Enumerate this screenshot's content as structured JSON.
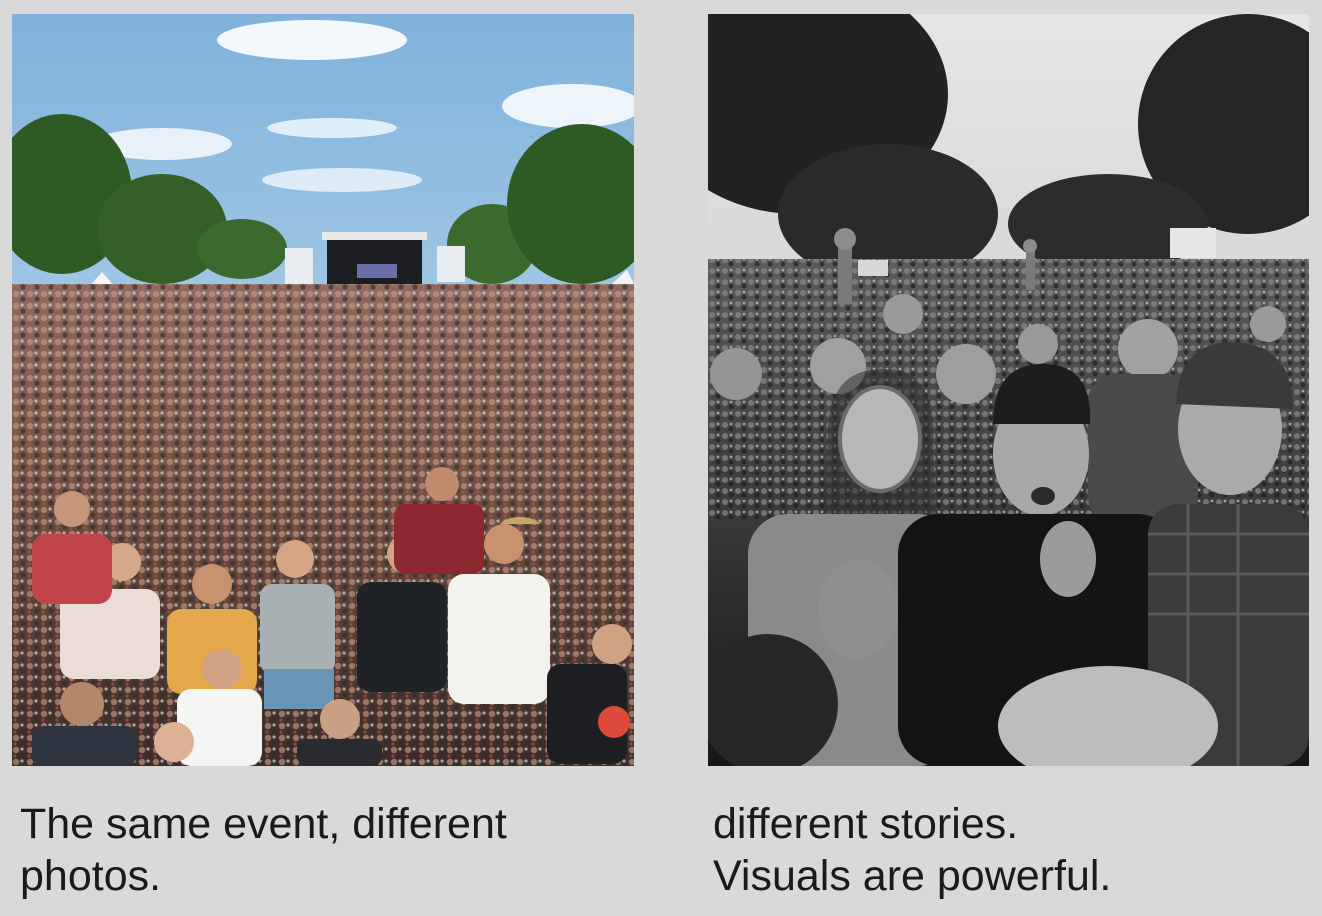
{
  "left_panel": {
    "image": "sunny-festival-crowd-photo",
    "caption_lines": [
      "The same event, different",
      "photos."
    ]
  },
  "right_panel": {
    "image": "black-and-white-protest-crowd-photo",
    "caption_lines": [
      "different stories.",
      "Visuals are powerful."
    ]
  },
  "colors": {
    "background": "#d9d9d9",
    "text": "#1a1a1a"
  }
}
